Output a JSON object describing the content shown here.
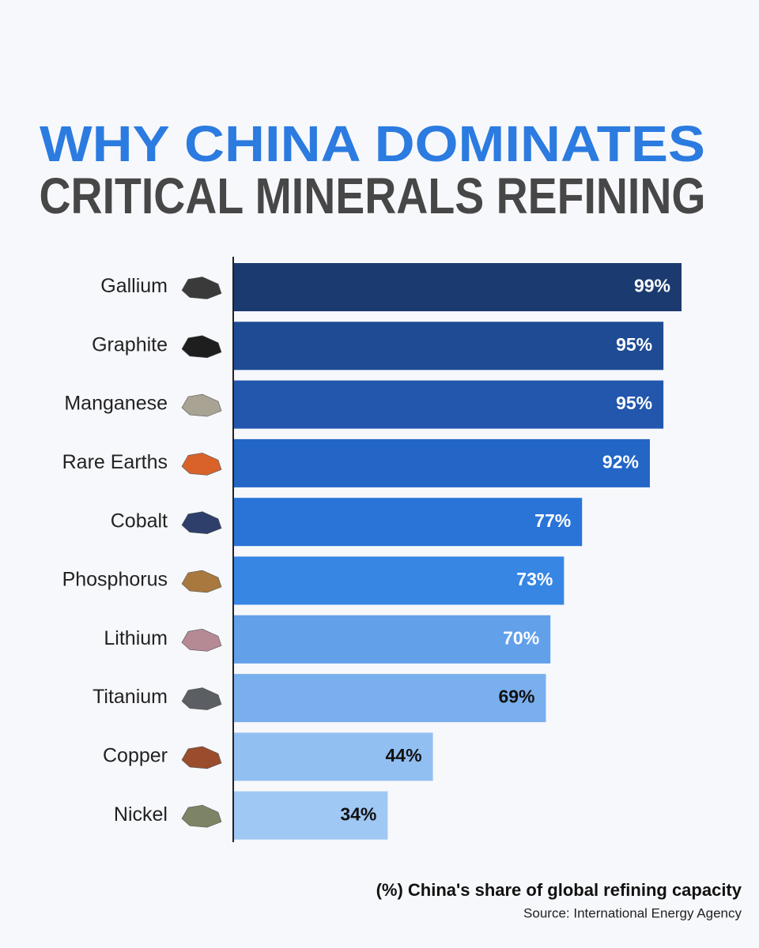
{
  "chart_data": {
    "type": "bar",
    "orientation": "horizontal",
    "title": "WHY CHINA DOMINATES",
    "subtitle": "CRITICAL MINERALS REFINING",
    "categories": [
      "Gallium",
      "Graphite",
      "Manganese",
      "Rare Earths",
      "Cobalt",
      "Phosphorus",
      "Lithium",
      "Titanium",
      "Copper",
      "Nickel"
    ],
    "values": [
      99,
      95,
      95,
      92,
      77,
      73,
      70,
      69,
      44,
      34
    ],
    "value_labels": [
      "99%",
      "95%",
      "95%",
      "92%",
      "77%",
      "73%",
      "70%",
      "69%",
      "44%",
      "34%"
    ],
    "colors": [
      "#1b3b70",
      "#1f4b95",
      "#2357ae",
      "#2466c6",
      "#2a74d8",
      "#3786e4",
      "#62a0ea",
      "#7aafee",
      "#92bff2",
      "#a0c8f4"
    ],
    "caption": "(%) China's share of global refining capacity",
    "source": "Source: International Energy Agency"
  }
}
